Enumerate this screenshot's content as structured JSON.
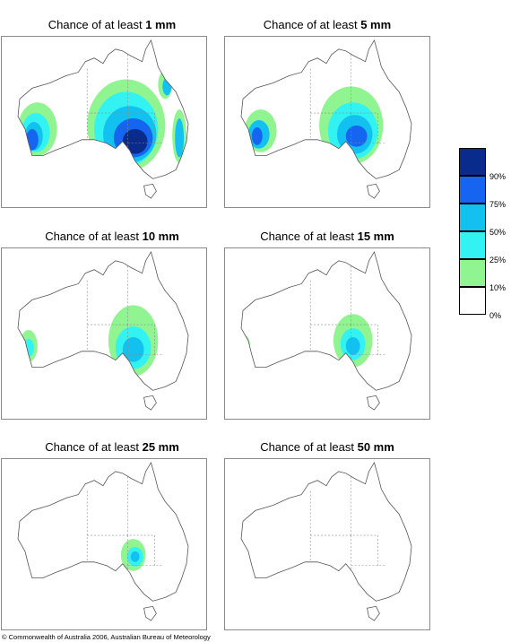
{
  "panels": [
    {
      "prefix": "Chance of at least",
      "amount": "1 mm",
      "level": 1
    },
    {
      "prefix": "Chance of at least",
      "amount": "5 mm",
      "level": 2
    },
    {
      "prefix": "Chance of at least",
      "amount": "10 mm",
      "level": 3
    },
    {
      "prefix": "Chance of at least",
      "amount": "15 mm",
      "level": 4
    },
    {
      "prefix": "Chance of at least",
      "amount": "25 mm",
      "level": 5
    },
    {
      "prefix": "Chance of at least",
      "amount": "50 mm",
      "level": 6
    }
  ],
  "legend": {
    "labels": [
      "90%",
      "75%",
      "50%",
      "25%",
      "10%",
      "0%"
    ],
    "colors": [
      "#0a2a8c",
      "#1565f0",
      "#13c1f0",
      "#33f2f2",
      "#90f490",
      "#ffffff"
    ]
  },
  "copyright": "© Commonwealth of Australia 2006, Australian Bureau of Meteorology"
}
